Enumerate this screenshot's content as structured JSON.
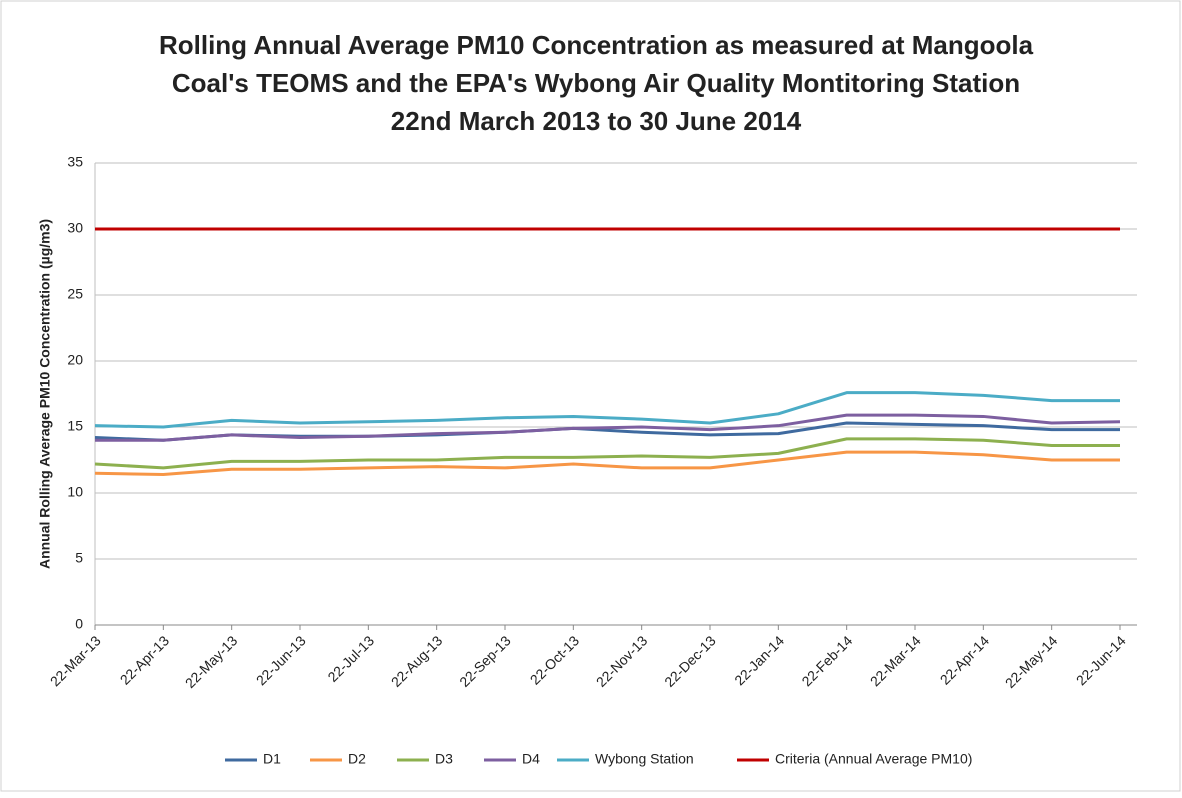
{
  "chart_data": {
    "type": "line",
    "title": [
      "Rolling Annual Average PM10 Concentration as measured at Mangoola",
      "Coal's TEOMS and the EPA's Wybong Air Quality Montitoring Station",
      "22nd March 2013 to 30 June 2014"
    ],
    "y_label": "Annual Rolling Average PM10 Concentration (µg/m3)",
    "categories": [
      "22-Mar-13",
      "22-Apr-13",
      "22-May-13",
      "22-Jun-13",
      "22-Jul-13",
      "22-Aug-13",
      "22-Sep-13",
      "22-Oct-13",
      "22-Nov-13",
      "22-Dec-13",
      "22-Jan-14",
      "22-Feb-14",
      "22-Mar-14",
      "22-Apr-14",
      "22-May-14",
      "22-Jun-14"
    ],
    "series": [
      {
        "name": "D1",
        "color": "#3f6a9f",
        "values": [
          14.2,
          14.0,
          14.4,
          14.3,
          14.3,
          14.4,
          14.6,
          14.9,
          14.6,
          14.4,
          14.5,
          15.3,
          15.2,
          15.1,
          14.8,
          14.8
        ]
      },
      {
        "name": "D2",
        "color": "#f79646",
        "values": [
          11.5,
          11.4,
          11.8,
          11.8,
          11.9,
          12.0,
          11.9,
          12.2,
          11.9,
          11.9,
          12.5,
          13.1,
          13.1,
          12.9,
          12.5,
          12.5
        ]
      },
      {
        "name": "D3",
        "color": "#8db04f",
        "values": [
          12.2,
          11.9,
          12.4,
          12.4,
          12.5,
          12.5,
          12.7,
          12.7,
          12.8,
          12.7,
          13.0,
          14.1,
          14.1,
          14.0,
          13.6,
          13.6
        ]
      },
      {
        "name": "D4",
        "color": "#7d5fa0",
        "values": [
          14.0,
          14.0,
          14.4,
          14.2,
          14.3,
          14.5,
          14.6,
          14.9,
          15.0,
          14.8,
          15.1,
          15.9,
          15.9,
          15.8,
          15.3,
          15.4
        ]
      },
      {
        "name": "Wybong Station",
        "color": "#4bacc6",
        "values": [
          15.1,
          15.0,
          15.5,
          15.3,
          15.4,
          15.5,
          15.7,
          15.8,
          15.6,
          15.3,
          16.0,
          17.6,
          17.6,
          17.4,
          17.0,
          17.0
        ]
      },
      {
        "name": "Criteria (Annual Average PM10)",
        "color": "#c00000",
        "values": [
          30,
          30,
          30,
          30,
          30,
          30,
          30,
          30,
          30,
          30,
          30,
          30,
          30,
          30,
          30,
          30
        ]
      }
    ],
    "ylim": [
      0,
      35
    ],
    "yticks": [
      0,
      5,
      10,
      15,
      20,
      25,
      30,
      35
    ],
    "grid": true,
    "legend": "bottom"
  }
}
